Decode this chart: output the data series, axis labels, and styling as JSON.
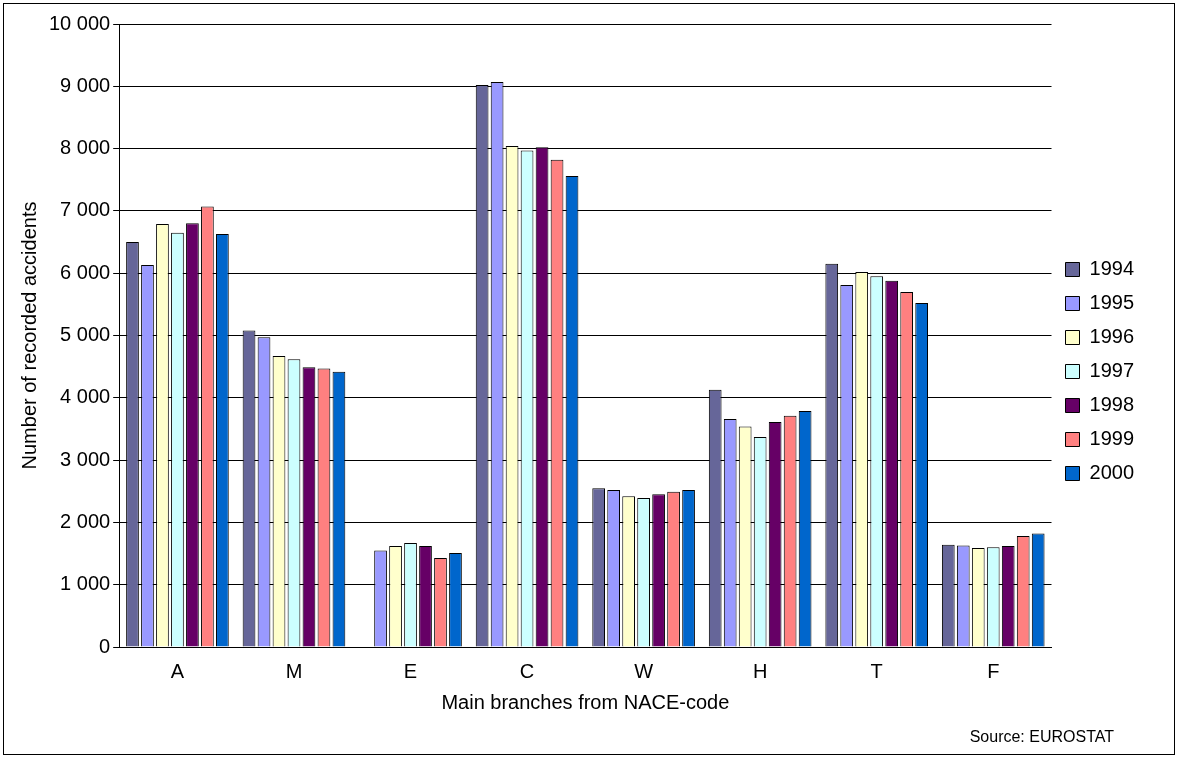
{
  "chart_data": {
    "type": "bar",
    "xlabel": "Main branches from NACE-code",
    "ylabel": "Number of recorded accidents",
    "categories": [
      "A",
      "M",
      "E",
      "C",
      "W",
      "H",
      "T",
      "F"
    ],
    "series": [
      {
        "name": "1994",
        "color": "#666699",
        "values": [
          6500,
          5080,
          null,
          9020,
          2550,
          4130,
          6150,
          1640
        ]
      },
      {
        "name": "1995",
        "color": "#9999ff",
        "values": [
          6130,
          4970,
          1550,
          9070,
          2520,
          3660,
          5810,
          1630
        ]
      },
      {
        "name": "1996",
        "color": "#ffffcc",
        "values": [
          6790,
          4670,
          1620,
          8040,
          2420,
          3540,
          6020,
          1590
        ]
      },
      {
        "name": "1997",
        "color": "#ccffff",
        "values": [
          6650,
          4620,
          1670,
          7970,
          2390,
          3370,
          5950,
          1600
        ]
      },
      {
        "name": "1998",
        "color": "#660066",
        "values": [
          6800,
          4490,
          1620,
          8020,
          2450,
          3610,
          5880,
          1620
        ]
      },
      {
        "name": "1999",
        "color": "#ff8080",
        "values": [
          7070,
          4470,
          1430,
          7820,
          2490,
          3710,
          5700,
          1780
        ]
      },
      {
        "name": "2000",
        "color": "#0066cc",
        "values": [
          6630,
          4420,
          1510,
          7560,
          2520,
          3790,
          5520,
          1820
        ]
      }
    ],
    "ylim": [
      0,
      10000
    ],
    "yticks": [
      0,
      {
        "value": 1000,
        "label": "1 000"
      },
      {
        "value": 2000,
        "label": "2 000"
      },
      {
        "value": 3000,
        "label": "3 000"
      },
      {
        "value": 4000,
        "label": "4 000"
      },
      {
        "value": 5000,
        "label": "5 000"
      },
      {
        "value": 6000,
        "label": "6 000"
      },
      {
        "value": 7000,
        "label": "7 000"
      },
      {
        "value": 8000,
        "label": "8 000"
      },
      {
        "value": 9000,
        "label": "9 000"
      },
      {
        "value": 10000,
        "label": "10 000"
      }
    ],
    "grid": "y",
    "legend": "right",
    "annotations": [
      "Source: EUROSTAT"
    ]
  }
}
